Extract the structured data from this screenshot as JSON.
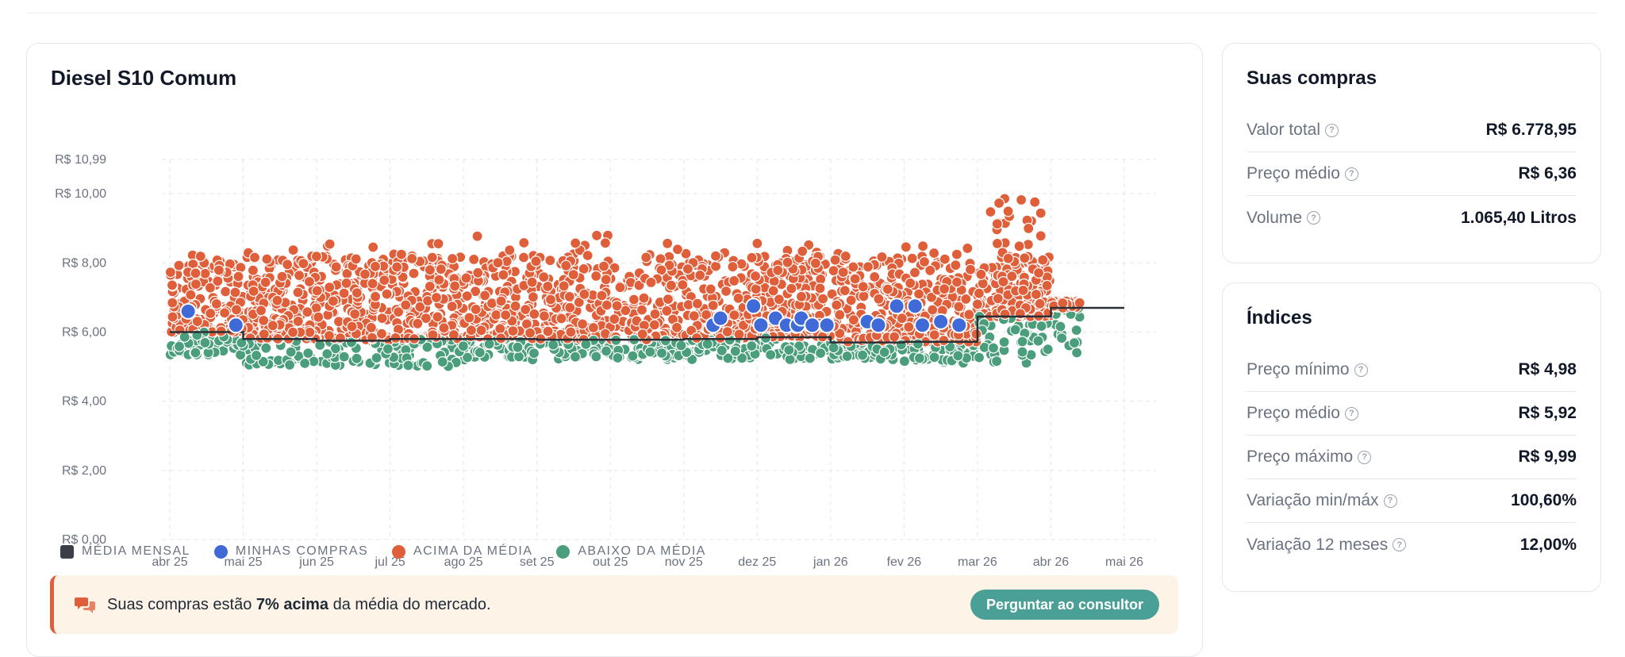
{
  "chart_card": {
    "title": "Diesel S10 Comum",
    "legend": {
      "monthly_avg": "MÉDIA MENSAL",
      "my_purchases": "MINHAS COMPRAS",
      "above_avg": "ACIMA DA MÉDIA",
      "below_avg": "ABAIXO DA MÉDIA"
    },
    "alert": {
      "text_prefix": "Suas compras estão ",
      "text_bold": "7% acima",
      "text_suffix": " da média do mercado.",
      "button": "Perguntar ao consultor"
    }
  },
  "purchases": {
    "title": "Suas compras",
    "rows": [
      {
        "label": "Valor total",
        "value": "R$ 6.778,95"
      },
      {
        "label": "Preço médio",
        "value": "R$ 6,36"
      },
      {
        "label": "Volume",
        "value": "1.065,40 Litros"
      }
    ]
  },
  "indices": {
    "title": "Índices",
    "rows": [
      {
        "label": "Preço mínimo",
        "value": "R$ 4,98"
      },
      {
        "label": "Preço médio",
        "value": "R$ 5,92"
      },
      {
        "label": "Preço máximo",
        "value": "R$ 9,99"
      },
      {
        "label": "Variação min/máx",
        "value": "100,60%"
      },
      {
        "label": "Variação 12 meses",
        "value": "12,00%"
      }
    ]
  },
  "colors": {
    "above": "#e05f3b",
    "below": "#4a9e7b",
    "mine": "#3f6ad8",
    "avg_line": "#2b3036",
    "accent": "#4a9f96"
  },
  "chart_data": {
    "type": "scatter",
    "title": "Diesel S10 Comum",
    "y_ticks": [
      "R$ 0,00",
      "R$ 2,00",
      "R$ 4,00",
      "R$ 6,00",
      "R$ 8,00",
      "R$ 10,00",
      "R$ 10,99"
    ],
    "y_tick_values": [
      0,
      2,
      4,
      6,
      8,
      10,
      10.99
    ],
    "ylim": [
      0,
      10.99
    ],
    "x_ticks": [
      "abr 25",
      "mai 25",
      "jun 25",
      "jul 25",
      "ago 25",
      "set 25",
      "out 25",
      "nov 25",
      "dez 25",
      "jan 26",
      "fev 26",
      "mar 26",
      "abr 26",
      "mai 26"
    ],
    "xlim": [
      0,
      13
    ],
    "grid": true,
    "monthly_average": {
      "name": "MÉDIA MENSAL",
      "steps": [
        {
          "from": 0,
          "to": 1,
          "value": 6.0
        },
        {
          "from": 1,
          "to": 2,
          "value": 5.8
        },
        {
          "from": 2,
          "to": 3,
          "value": 5.75
        },
        {
          "from": 3,
          "to": 4,
          "value": 5.8
        },
        {
          "from": 4,
          "to": 5,
          "value": 5.8
        },
        {
          "from": 5,
          "to": 6,
          "value": 5.78
        },
        {
          "from": 6,
          "to": 7,
          "value": 5.78
        },
        {
          "from": 7,
          "to": 8,
          "value": 5.8
        },
        {
          "from": 8,
          "to": 9,
          "value": 5.85
        },
        {
          "from": 9,
          "to": 10,
          "value": 5.7
        },
        {
          "from": 10,
          "to": 11,
          "value": 5.72
        },
        {
          "from": 11,
          "to": 12,
          "value": 6.45
        },
        {
          "from": 12,
          "to": 13,
          "value": 6.7
        }
      ]
    },
    "my_purchases": {
      "name": "MINHAS COMPRAS",
      "points": [
        {
          "x": 0.25,
          "y": 6.6
        },
        {
          "x": 0.9,
          "y": 6.2
        },
        {
          "x": 7.4,
          "y": 6.2
        },
        {
          "x": 7.5,
          "y": 6.4
        },
        {
          "x": 7.95,
          "y": 6.75
        },
        {
          "x": 8.05,
          "y": 6.2
        },
        {
          "x": 8.25,
          "y": 6.4
        },
        {
          "x": 8.4,
          "y": 6.2
        },
        {
          "x": 8.55,
          "y": 6.2
        },
        {
          "x": 8.6,
          "y": 6.4
        },
        {
          "x": 8.75,
          "y": 6.2
        },
        {
          "x": 8.95,
          "y": 6.2
        },
        {
          "x": 9.5,
          "y": 6.3
        },
        {
          "x": 9.65,
          "y": 6.2
        },
        {
          "x": 9.9,
          "y": 6.75
        },
        {
          "x": 10.15,
          "y": 6.75
        },
        {
          "x": 10.25,
          "y": 6.2
        },
        {
          "x": 10.5,
          "y": 6.3
        },
        {
          "x": 10.75,
          "y": 6.2
        }
      ]
    },
    "market": {
      "above_name": "ACIMA DA MÉDIA",
      "below_name": "ABAIXO DA MÉDIA",
      "months": [
        {
          "m": 0,
          "min": 5.3,
          "max": 8.6
        },
        {
          "m": 1,
          "min": 5.0,
          "max": 8.4
        },
        {
          "m": 2,
          "min": 5.0,
          "max": 8.8
        },
        {
          "m": 3,
          "min": 5.0,
          "max": 8.6
        },
        {
          "m": 4,
          "min": 5.2,
          "max": 9.1
        },
        {
          "m": 5,
          "min": 5.2,
          "max": 8.9
        },
        {
          "m": 6,
          "min": 5.2,
          "max": 8.6
        },
        {
          "m": 7,
          "min": 5.2,
          "max": 8.5
        },
        {
          "m": 8,
          "min": 5.2,
          "max": 8.6
        },
        {
          "m": 9,
          "min": 5.2,
          "max": 8.5
        },
        {
          "m": 10,
          "min": 5.1,
          "max": 8.5
        },
        {
          "m": 11,
          "min": 5.1,
          "max": 9.99
        },
        {
          "m": 12,
          "min": 5.4,
          "max": 6.9
        }
      ]
    }
  }
}
